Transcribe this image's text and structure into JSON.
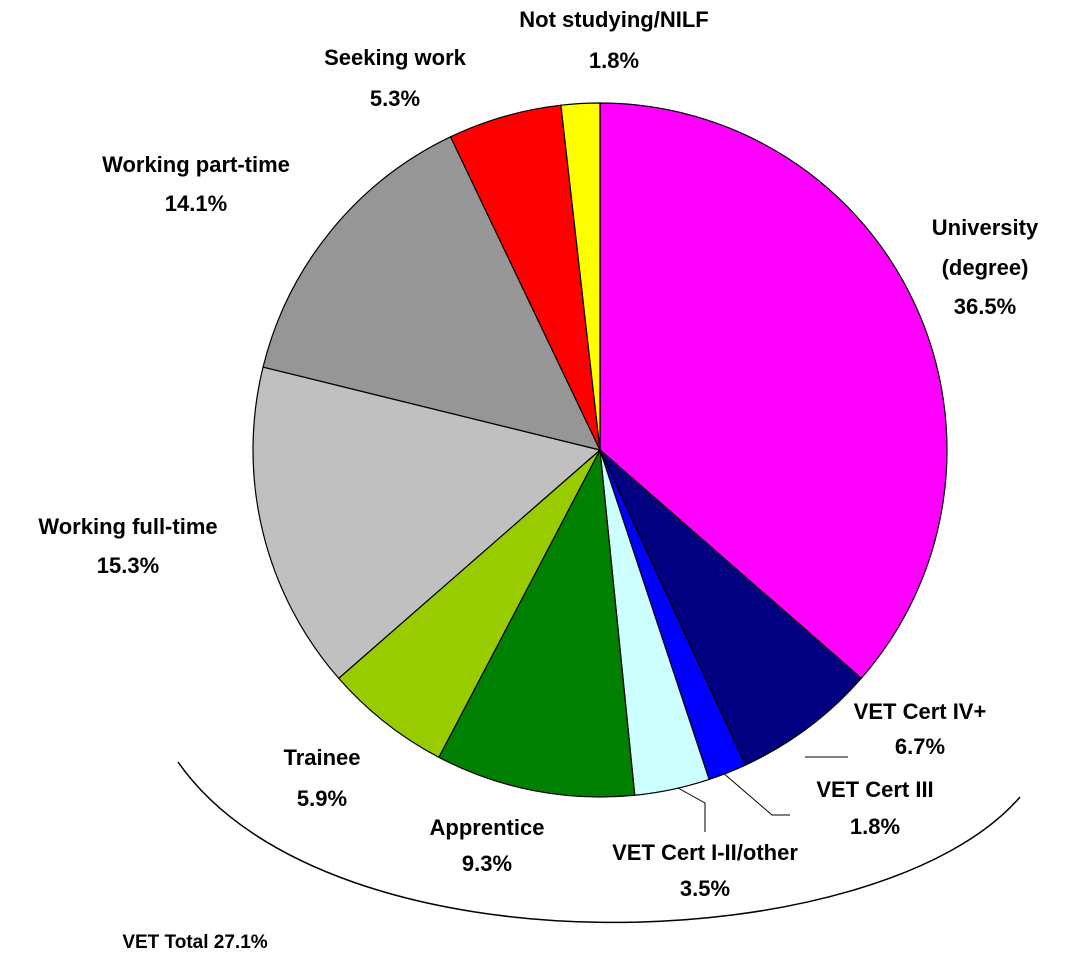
{
  "chart_data": {
    "type": "pie",
    "categories": [
      "University (degree)",
      "VET Cert IV+",
      "VET Cert III",
      "VET Cert I-II/other",
      "Apprentice",
      "Trainee",
      "Working full-time",
      "Working part-time",
      "Seeking work",
      "Not studying/NILF"
    ],
    "values": [
      36.5,
      6.7,
      1.8,
      3.5,
      9.3,
      5.9,
      15.3,
      14.1,
      5.3,
      1.8
    ],
    "value_labels": [
      "36.5%",
      "6.7%",
      "1.8%",
      "3.5%",
      "9.3%",
      "5.9%",
      "15.3%",
      "14.1%",
      "5.3%",
      "1.8%"
    ],
    "colors": [
      "#ff00ff",
      "#000080",
      "#0000ff",
      "#ccffff",
      "#008000",
      "#99cc00",
      "#c0c0c0",
      "#969696",
      "#ff0000",
      "#ffff00"
    ],
    "annotation": "VET Total 27.1%"
  }
}
